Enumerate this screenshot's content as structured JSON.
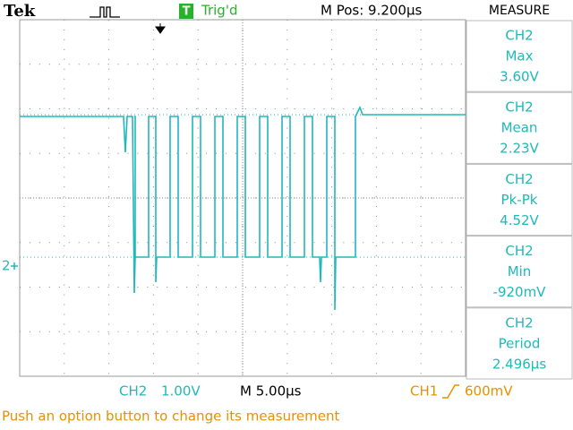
{
  "header": {
    "brand": "Tek",
    "trigger_badge": "T",
    "trigger_status": "Trig'd",
    "position": "M Pos: 9.200µs",
    "menu_title": "MEASURE"
  },
  "channel_marker": "2",
  "measurements": [
    {
      "source": "CH2",
      "name": "Max",
      "value": "3.60V"
    },
    {
      "source": "CH2",
      "name": "Mean",
      "value": "2.23V"
    },
    {
      "source": "CH2",
      "name": "Pk-Pk",
      "value": "4.52V"
    },
    {
      "source": "CH2",
      "name": "Min",
      "value": "-920mV"
    },
    {
      "source": "CH2",
      "name": "Period",
      "value": "2.496µs"
    }
  ],
  "footer": {
    "ch2_label": "CH2",
    "ch2_scale": "1.00V",
    "timebase": "M 5.00µs",
    "trigger_source": "CH1",
    "trigger_level": "600mV",
    "message": "Push an option button to change its measurement"
  }
}
